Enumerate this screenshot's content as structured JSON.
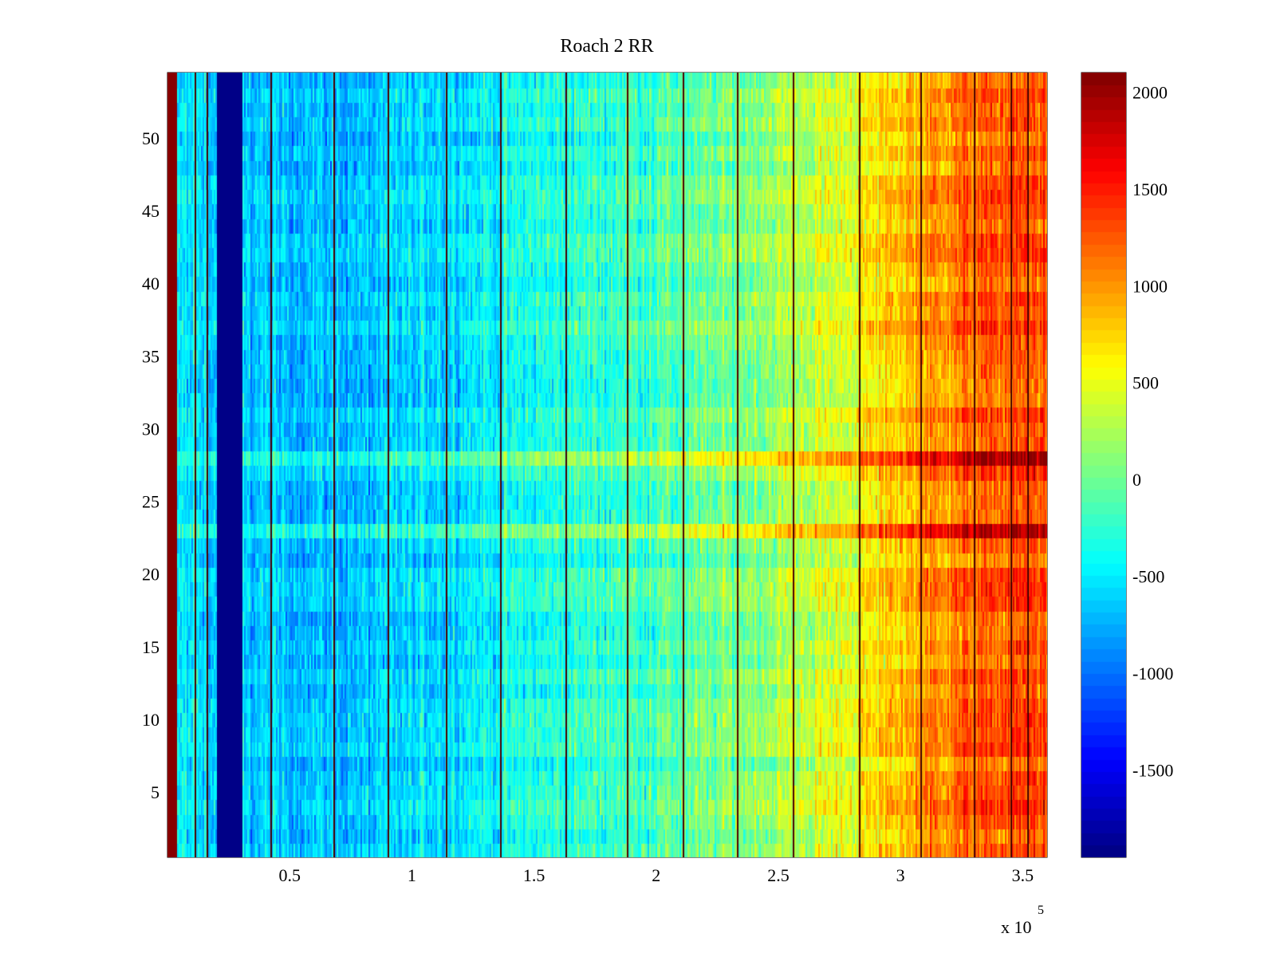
{
  "chart_data": {
    "type": "heatmap",
    "title": "Roach 2 RR",
    "xlabel": "",
    "ylabel": "",
    "x_exponent_label": "x 10",
    "x_exponent": "5",
    "xlim": [
      0,
      360000
    ],
    "ylim": [
      0.5,
      54.5
    ],
    "x_ticks": [
      {
        "value": 50000,
        "label": "0.5"
      },
      {
        "value": 100000,
        "label": "1"
      },
      {
        "value": 150000,
        "label": "1.5"
      },
      {
        "value": 200000,
        "label": "2"
      },
      {
        "value": 250000,
        "label": "2.5"
      },
      {
        "value": 300000,
        "label": "3"
      },
      {
        "value": 350000,
        "label": "3.5"
      }
    ],
    "y_ticks": [
      {
        "value": 5,
        "label": "5"
      },
      {
        "value": 10,
        "label": "10"
      },
      {
        "value": 15,
        "label": "15"
      },
      {
        "value": 20,
        "label": "20"
      },
      {
        "value": 25,
        "label": "25"
      },
      {
        "value": 30,
        "label": "30"
      },
      {
        "value": 35,
        "label": "35"
      },
      {
        "value": 40,
        "label": "40"
      },
      {
        "value": 45,
        "label": "45"
      },
      {
        "value": 50,
        "label": "50"
      }
    ],
    "colormap": "jet",
    "clim": [
      -1950,
      2100
    ],
    "colorbar_ticks": [
      {
        "value": 2000,
        "label": "2000"
      },
      {
        "value": 1500,
        "label": "1500"
      },
      {
        "value": 1000,
        "label": "1000"
      },
      {
        "value": 500,
        "label": "500"
      },
      {
        "value": 0,
        "label": "0"
      },
      {
        "value": -500,
        "label": "-500"
      },
      {
        "value": -1000,
        "label": "-1000"
      },
      {
        "value": -1500,
        "label": "-1500"
      }
    ],
    "num_rows": 54,
    "trend_profile_x": [
      0,
      20000,
      35000,
      80000,
      150000,
      220000,
      260000,
      280000,
      305000,
      330000,
      360000
    ],
    "trend_profile_value": [
      -500,
      -600,
      -650,
      -700,
      -350,
      -50,
      300,
      500,
      900,
      1200,
      1300
    ],
    "saturated_bands": [
      {
        "x_from": 0,
        "x_to": 4000,
        "value": 2100
      },
      {
        "x_from": 20000,
        "x_to": 31000,
        "value": -1950
      }
    ],
    "row_variation_note_rows": [
      28,
      23
    ]
  }
}
